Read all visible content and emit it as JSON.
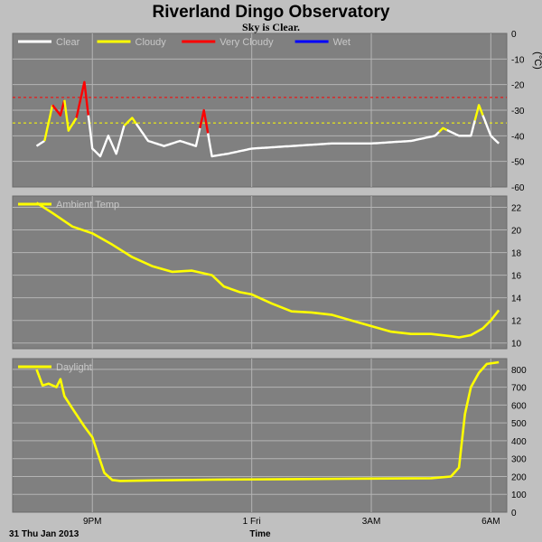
{
  "title": "Riverland Dingo Observatory",
  "subtitle": "Sky is Clear.",
  "date_label": "31 Thu Jan 2013",
  "xlabel": "Time",
  "x_ticks": [
    "9PM",
    "1 Fri",
    "3AM",
    "6AM"
  ],
  "colors": {
    "background": "#c0c0c0",
    "plot_background": "#808080",
    "grid": "#b4b4b4",
    "clear": "#ffffff",
    "cloudy": "#ffff00",
    "very_cloudy": "#ff0000",
    "wet": "#0000ff"
  },
  "chart_data": [
    {
      "type": "line",
      "panel": "sky",
      "legend": [
        {
          "label": "Clear",
          "color": "#ffffff"
        },
        {
          "label": "Cloudy",
          "color": "#ffff00"
        },
        {
          "label": "Very Cloudy",
          "color": "#ff0000"
        },
        {
          "label": "Wet",
          "color": "#0000ff"
        }
      ],
      "ylabel": "(°C)",
      "ylim": [
        -60,
        0
      ],
      "y_ticks": [
        "0",
        "-10",
        "-20",
        "-30",
        "-40",
        "-50",
        "-60"
      ],
      "y_tick_values": [
        0,
        -10,
        -20,
        -30,
        -40,
        -50,
        -60
      ],
      "thresholds": [
        {
          "value": -25,
          "color": "#ff0000"
        },
        {
          "value": -35,
          "color": "#ffff00"
        }
      ],
      "x": [
        19.6,
        19.8,
        20.0,
        20.2,
        20.3,
        20.4,
        20.6,
        20.8,
        21.0,
        21.2,
        21.4,
        21.6,
        21.8,
        22.0,
        22.4,
        22.8,
        23.2,
        23.6,
        23.8,
        24.0,
        24.4,
        25.0,
        26.0,
        27.0,
        28.0,
        29.0,
        29.6,
        29.8,
        30.2,
        30.5,
        30.7,
        31.0,
        31.2
      ],
      "y": [
        -44,
        -42,
        -28,
        -32,
        -26,
        -38,
        -33,
        -19,
        -45,
        -48,
        -40,
        -47,
        -36,
        -33,
        -42,
        -44,
        -42,
        -44,
        -30,
        -48,
        -47,
        -45,
        -44,
        -43,
        -43,
        -42,
        -40,
        -37,
        -40,
        -40,
        -28,
        -40,
        -43
      ],
      "segments": [
        {
          "label": "Clear",
          "x_start": 19.6,
          "x_end": 19.8
        },
        {
          "label": "Cloudy",
          "x_start": 19.8,
          "x_end": 20.0
        },
        {
          "label": "Very Cloudy",
          "x_start": 20.0,
          "x_end": 20.3
        },
        {
          "label": "Cloudy",
          "x_start": 20.3,
          "x_end": 20.6
        },
        {
          "label": "Very Cloudy",
          "x_start": 20.6,
          "x_end": 20.9
        },
        {
          "label": "Clear",
          "x_start": 20.9,
          "x_end": 21.8
        },
        {
          "label": "Cloudy",
          "x_start": 21.8,
          "x_end": 22.1
        },
        {
          "label": "Clear",
          "x_start": 22.1,
          "x_end": 23.7
        },
        {
          "label": "Very Cloudy",
          "x_start": 23.7,
          "x_end": 23.9
        },
        {
          "label": "Clear",
          "x_start": 23.9,
          "x_end": 29.7
        },
        {
          "label": "Cloudy",
          "x_start": 29.7,
          "x_end": 29.9
        },
        {
          "label": "Clear",
          "x_start": 29.9,
          "x_end": 30.6
        },
        {
          "label": "Cloudy",
          "x_start": 30.6,
          "x_end": 30.8
        },
        {
          "label": "Clear",
          "x_start": 30.8,
          "x_end": 31.2
        }
      ]
    },
    {
      "type": "line",
      "panel": "ambient",
      "legend": [
        {
          "label": "Ambient Temp",
          "color": "#ffff00"
        }
      ],
      "ylim": [
        9.5,
        23
      ],
      "y_ticks": [
        "22",
        "20",
        "18",
        "16",
        "14",
        "12",
        "10"
      ],
      "y_tick_values": [
        22,
        20,
        18,
        16,
        14,
        12,
        10
      ],
      "x": [
        19.6,
        20.0,
        20.5,
        21.0,
        21.5,
        22.0,
        22.5,
        23.0,
        23.5,
        24.0,
        24.3,
        24.7,
        25.0,
        25.5,
        26.0,
        26.5,
        27.0,
        27.5,
        28.0,
        28.5,
        29.0,
        29.5,
        30.0,
        30.2,
        30.5,
        30.8,
        31.0,
        31.2
      ],
      "y": [
        22.4,
        21.5,
        20.3,
        19.7,
        18.7,
        17.6,
        16.8,
        16.3,
        16.4,
        16.0,
        15.0,
        14.5,
        14.3,
        13.5,
        12.8,
        12.7,
        12.5,
        12.0,
        11.5,
        11.0,
        10.8,
        10.8,
        10.6,
        10.5,
        10.7,
        11.3,
        12.0,
        12.9
      ]
    },
    {
      "type": "line",
      "panel": "daylight",
      "legend": [
        {
          "label": "Daylight",
          "color": "#ffff00"
        }
      ],
      "ylim": [
        0,
        860
      ],
      "y_ticks": [
        "800",
        "700",
        "600",
        "500",
        "400",
        "300",
        "200",
        "100",
        "0"
      ],
      "y_tick_values": [
        800,
        700,
        600,
        500,
        400,
        300,
        200,
        100,
        0
      ],
      "x": [
        19.6,
        19.75,
        19.9,
        20.1,
        20.2,
        20.3,
        20.5,
        20.8,
        21.0,
        21.3,
        21.5,
        21.7,
        22.5,
        24.0,
        26.0,
        28.0,
        29.5,
        30.0,
        30.2,
        30.35,
        30.5,
        30.7,
        30.9,
        31.2
      ],
      "y": [
        800,
        710,
        720,
        700,
        745,
        650,
        580,
        480,
        420,
        220,
        180,
        175,
        178,
        182,
        185,
        188,
        190,
        200,
        250,
        550,
        700,
        780,
        830,
        840
      ]
    }
  ]
}
